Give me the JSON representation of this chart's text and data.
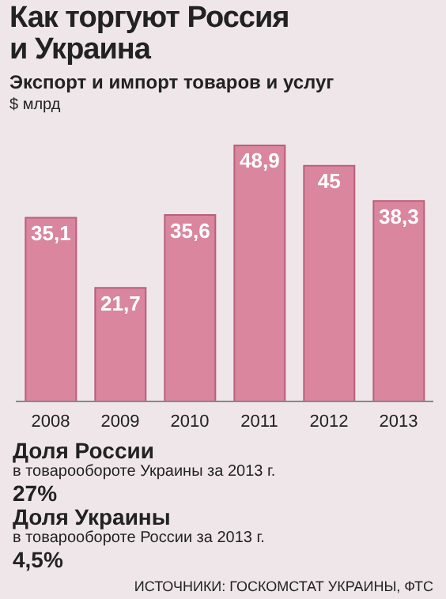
{
  "chart_data": {
    "type": "bar",
    "title": "Как торгуют Россия и Украина",
    "subtitle": "Экспорт и импорт товаров и услуг",
    "ylabel": "$ млрд",
    "categories": [
      "2008",
      "2009",
      "2010",
      "2011",
      "2012",
      "2013"
    ],
    "values": [
      35.1,
      21.7,
      35.6,
      48.9,
      45,
      38.3
    ],
    "value_labels": [
      "35,1",
      "21,7",
      "35,6",
      "48,9",
      "45",
      "38,3"
    ],
    "color": "#d9869e",
    "annotations": [
      "Доля России",
      "в товарообороте Украины за 2013 г.",
      "27%",
      "Доля Украины",
      "в товарообороте России за 2013 г.",
      "4,5%",
      "ИСТОЧНИКИ: ГОСКОМСТАТ УКРАИНЫ, ФТС"
    ]
  }
}
